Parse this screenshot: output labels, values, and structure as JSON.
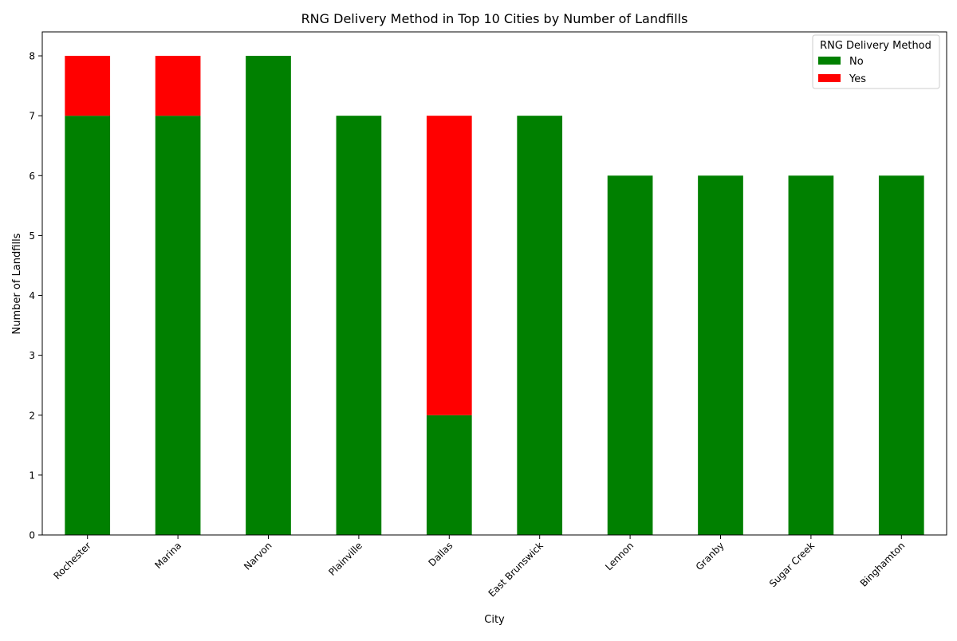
{
  "chart_data": {
    "type": "bar",
    "stacked": true,
    "title": "RNG Delivery Method in Top 10 Cities by Number of Landfills",
    "xlabel": "City",
    "ylabel": "Number of Landfills",
    "categories": [
      "Rochester",
      "Marina",
      "Narvon",
      "Plainville",
      "Dallas",
      "East Brunswick",
      "Lennon",
      "Granby",
      "Sugar Creek",
      "Binghamton"
    ],
    "series": [
      {
        "name": "No",
        "color": "#008000",
        "values": [
          7,
          7,
          8,
          7,
          2,
          7,
          6,
          6,
          6,
          6
        ]
      },
      {
        "name": "Yes",
        "color": "#ff0000",
        "values": [
          1,
          1,
          0,
          0,
          5,
          0,
          0,
          0,
          0,
          0
        ]
      }
    ],
    "ylim": [
      0,
      8.4
    ],
    "yticks": [
      0,
      1,
      2,
      3,
      4,
      5,
      6,
      7,
      8
    ],
    "grid": false,
    "legend": {
      "title": "RNG Delivery Method",
      "placement": "top-right"
    }
  }
}
